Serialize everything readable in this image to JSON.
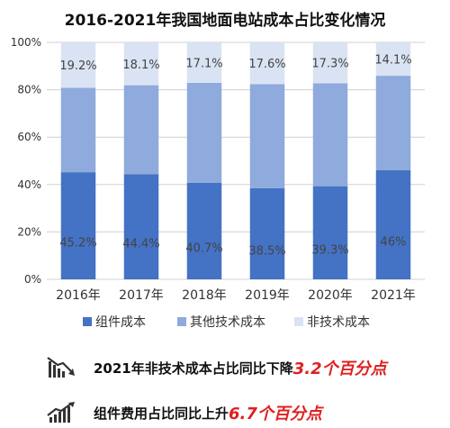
{
  "chart_data": {
    "type": "bar",
    "stacked": true,
    "title": "2016-2021年我国地面电站成本占比变化情况",
    "categories": [
      "2016年",
      "2017年",
      "2018年",
      "2019年",
      "2020年",
      "2021年"
    ],
    "ylim": [
      0,
      100
    ],
    "yticks": [
      "0%",
      "20%",
      "40%",
      "60%",
      "80%",
      "100%"
    ],
    "series": [
      {
        "name": "组件成本",
        "color": "#4472c4",
        "values": [
          45.2,
          44.4,
          40.7,
          38.5,
          39.3,
          46
        ],
        "labels": [
          "45.2%",
          "44.4%",
          "40.7%",
          "38.5%",
          "39.3%",
          "46%"
        ]
      },
      {
        "name": "其他技术成本",
        "color": "#8faadc",
        "values": [
          35.6,
          37.5,
          42.2,
          43.9,
          43.4,
          39.9
        ],
        "labels": []
      },
      {
        "name": "非技术成本",
        "color": "#dae3f3",
        "values": [
          19.2,
          18.1,
          17.1,
          17.6,
          17.3,
          14.1
        ],
        "labels": [
          "19.2%",
          "18.1%",
          "17.1%",
          "17.6%",
          "17.3%",
          "14.1%"
        ]
      }
    ],
    "grid": true,
    "legend": "bottom"
  },
  "notes": [
    {
      "icon": "trend-down-icon",
      "text": "2021年非技术成本占比同比下降",
      "highlight": "3.2个百分点"
    },
    {
      "icon": "trend-up-icon",
      "text": "组件费用占比同比上升",
      "highlight": "6.7个百分点"
    }
  ]
}
